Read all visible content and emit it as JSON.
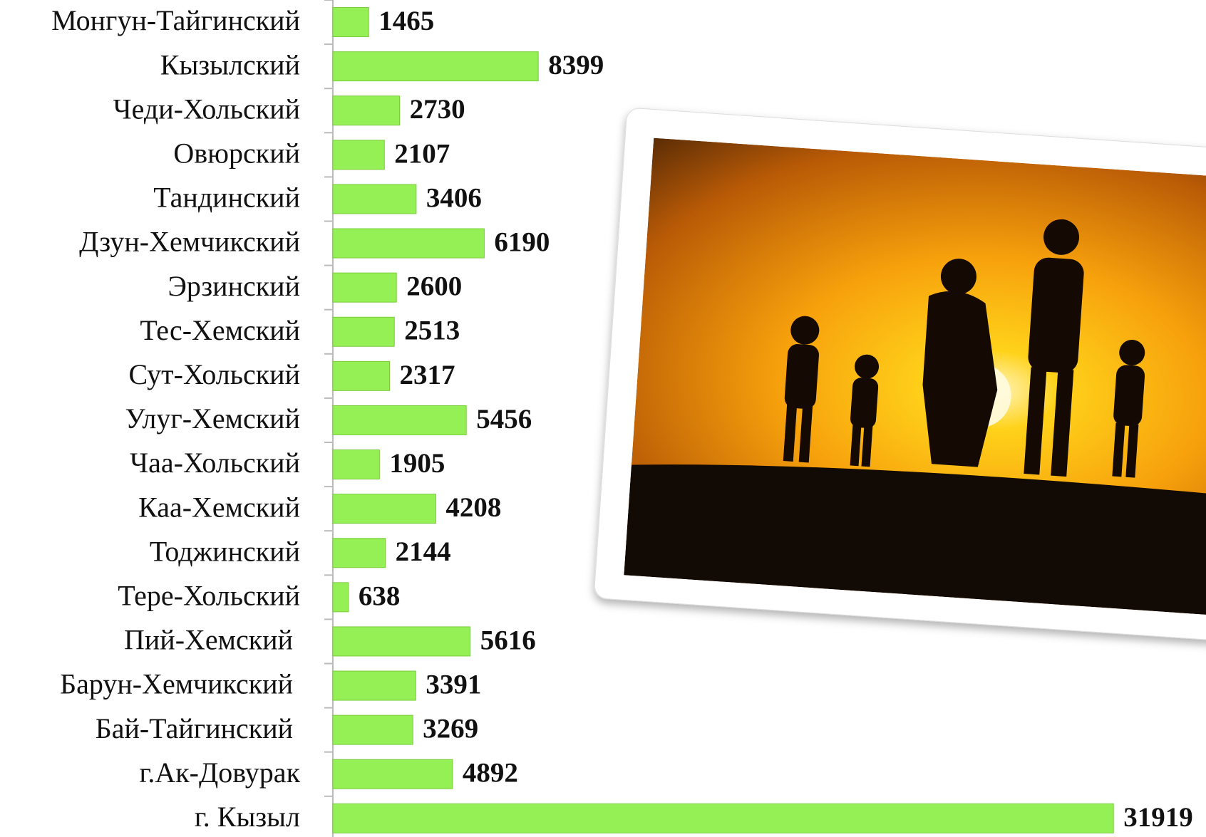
{
  "chart_data": {
    "type": "hbar",
    "categories": [
      "Монгун-Тайгинский",
      "Кызылский",
      "Чеди-Хольский",
      "Овюрский",
      "Тандинский",
      "Дзун-Хемчикский",
      "Эрзинский",
      "Тес-Хемский",
      "Сут-Хольский",
      "Улуг-Хемский",
      "Чаа-Хольский",
      "Каа-Хемский",
      "Тоджинский",
      "Тере-Хольский",
      "Пий-Хемский ",
      "Барун-Хемчикский ",
      "Бай-Тайгинский ",
      "г.Ак-Довурак",
      "г. Кызыл"
    ],
    "values": [
      1465,
      8399,
      2730,
      2107,
      3406,
      6190,
      2600,
      2513,
      2317,
      5456,
      1905,
      4208,
      2144,
      638,
      5616,
      3391,
      3269,
      4892,
      31919
    ],
    "color": "#95f055",
    "xlim": [
      0,
      32000
    ]
  }
}
